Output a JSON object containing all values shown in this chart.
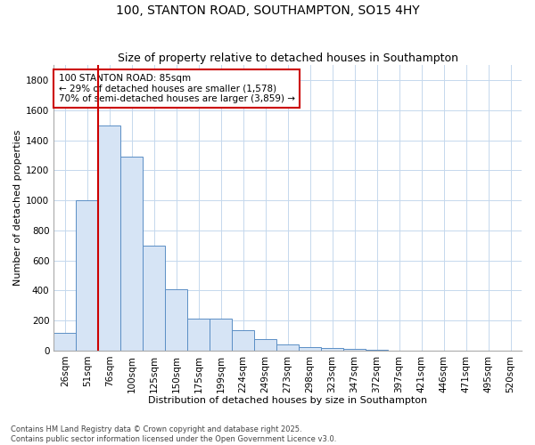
{
  "title": "100, STANTON ROAD, SOUTHAMPTON, SO15 4HY",
  "subtitle": "Size of property relative to detached houses in Southampton",
  "xlabel": "Distribution of detached houses by size in Southampton",
  "ylabel": "Number of detached properties",
  "categories": [
    "26sqm",
    "51sqm",
    "76sqm",
    "100sqm",
    "125sqm",
    "150sqm",
    "175sqm",
    "199sqm",
    "224sqm",
    "249sqm",
    "273sqm",
    "298sqm",
    "323sqm",
    "347sqm",
    "372sqm",
    "397sqm",
    "421sqm",
    "446sqm",
    "471sqm",
    "495sqm",
    "520sqm"
  ],
  "values": [
    115,
    1000,
    1500,
    1290,
    700,
    405,
    210,
    210,
    135,
    75,
    40,
    25,
    15,
    10,
    5,
    2,
    0,
    0,
    0,
    0,
    0
  ],
  "bar_color": "#d6e4f5",
  "bar_edge_color": "#5b8ec5",
  "vline_color": "#cc0000",
  "annotation_title": "100 STANTON ROAD: 85sqm",
  "annotation_line1": "← 29% of detached houses are smaller (1,578)",
  "annotation_line2": "70% of semi-detached houses are larger (3,859) →",
  "annotation_box_color": "#cc0000",
  "ylim": [
    0,
    1900
  ],
  "yticks": [
    0,
    200,
    400,
    600,
    800,
    1000,
    1200,
    1400,
    1600,
    1800
  ],
  "footnote1": "Contains HM Land Registry data © Crown copyright and database right 2025.",
  "footnote2": "Contains public sector information licensed under the Open Government Licence v3.0.",
  "bg_color": "#ffffff",
  "grid_color": "#c5d8ed",
  "title_fontsize": 10,
  "subtitle_fontsize": 9,
  "axis_label_fontsize": 8,
  "tick_fontsize": 7.5,
  "annot_fontsize": 7.5,
  "footnote_fontsize": 6
}
